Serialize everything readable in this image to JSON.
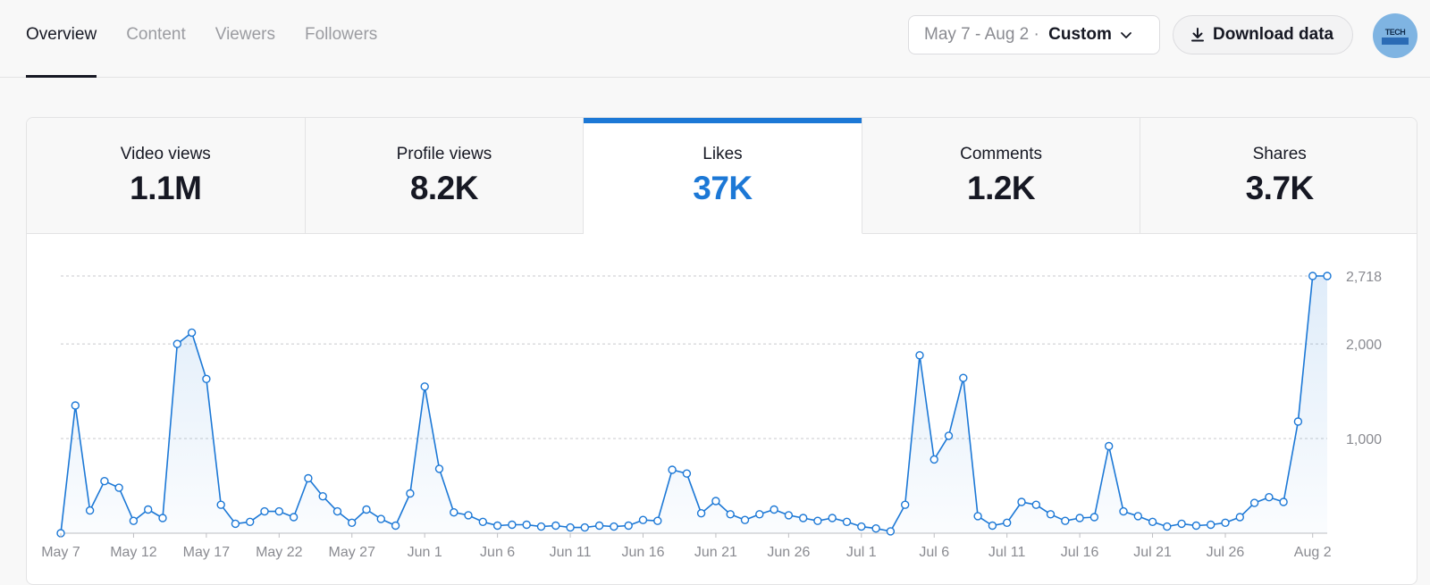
{
  "nav": {
    "tabs": [
      {
        "label": "Overview",
        "active": true
      },
      {
        "label": "Content",
        "active": false
      },
      {
        "label": "Viewers",
        "active": false
      },
      {
        "label": "Followers",
        "active": false
      }
    ]
  },
  "date_filter": {
    "range": "May 7 - Aug 2 · ",
    "mode": "Custom"
  },
  "download": {
    "label": "Download data"
  },
  "avatar": {
    "text": "TECH"
  },
  "metrics": [
    {
      "label": "Video views",
      "value": "1.1M",
      "active": false
    },
    {
      "label": "Profile views",
      "value": "8.2K",
      "active": false
    },
    {
      "label": "Likes",
      "value": "37K",
      "active": true
    },
    {
      "label": "Comments",
      "value": "1.2K",
      "active": false
    },
    {
      "label": "Shares",
      "value": "3.7K",
      "active": false
    }
  ],
  "colors": {
    "accent": "#1c78d6",
    "text": "#161823",
    "muted": "#9b9ca1"
  },
  "chart_data": {
    "type": "area",
    "series": [
      {
        "values": [
          0,
          1350,
          240,
          550,
          480,
          130,
          250,
          160,
          2000,
          2120,
          1630,
          300,
          100,
          120,
          230,
          230,
          170,
          580,
          390,
          230,
          110,
          250,
          150,
          80,
          420,
          1550,
          680,
          220,
          190,
          120,
          80,
          90,
          90,
          70,
          80,
          60,
          60,
          80,
          70,
          80,
          140,
          130,
          670,
          630,
          210,
          340,
          200,
          140,
          200,
          250,
          190,
          160,
          130,
          160,
          120,
          70,
          50,
          20,
          300,
          1880,
          780,
          1030,
          1640,
          180,
          80,
          110,
          330,
          300,
          200,
          130,
          160,
          170,
          920,
          230,
          180,
          120,
          70,
          100,
          80,
          90,
          110,
          170,
          320,
          380,
          330,
          1180,
          2718,
          2718
        ]
      }
    ],
    "x_tick_labels": [
      "May 7",
      "May 12",
      "May 17",
      "May 22",
      "May 27",
      "Jun 1",
      "Jun 6",
      "Jun 11",
      "Jun 16",
      "Jun 21",
      "Jun 26",
      "Jul 1",
      "Jul 6",
      "Jul 11",
      "Jul 16",
      "Jul 21",
      "Jul 26",
      "Aug 2"
    ],
    "x_tick_index": [
      0,
      5,
      10,
      15,
      20,
      25,
      30,
      35,
      40,
      45,
      50,
      55,
      60,
      65,
      70,
      75,
      80,
      86
    ],
    "y_tick_labels": [
      "1,000",
      "2,000",
      "2,718"
    ],
    "y_tick_values": [
      1000,
      2000,
      2718
    ],
    "ylim": [
      0,
      2718
    ],
    "grid": true,
    "legend": "none"
  }
}
